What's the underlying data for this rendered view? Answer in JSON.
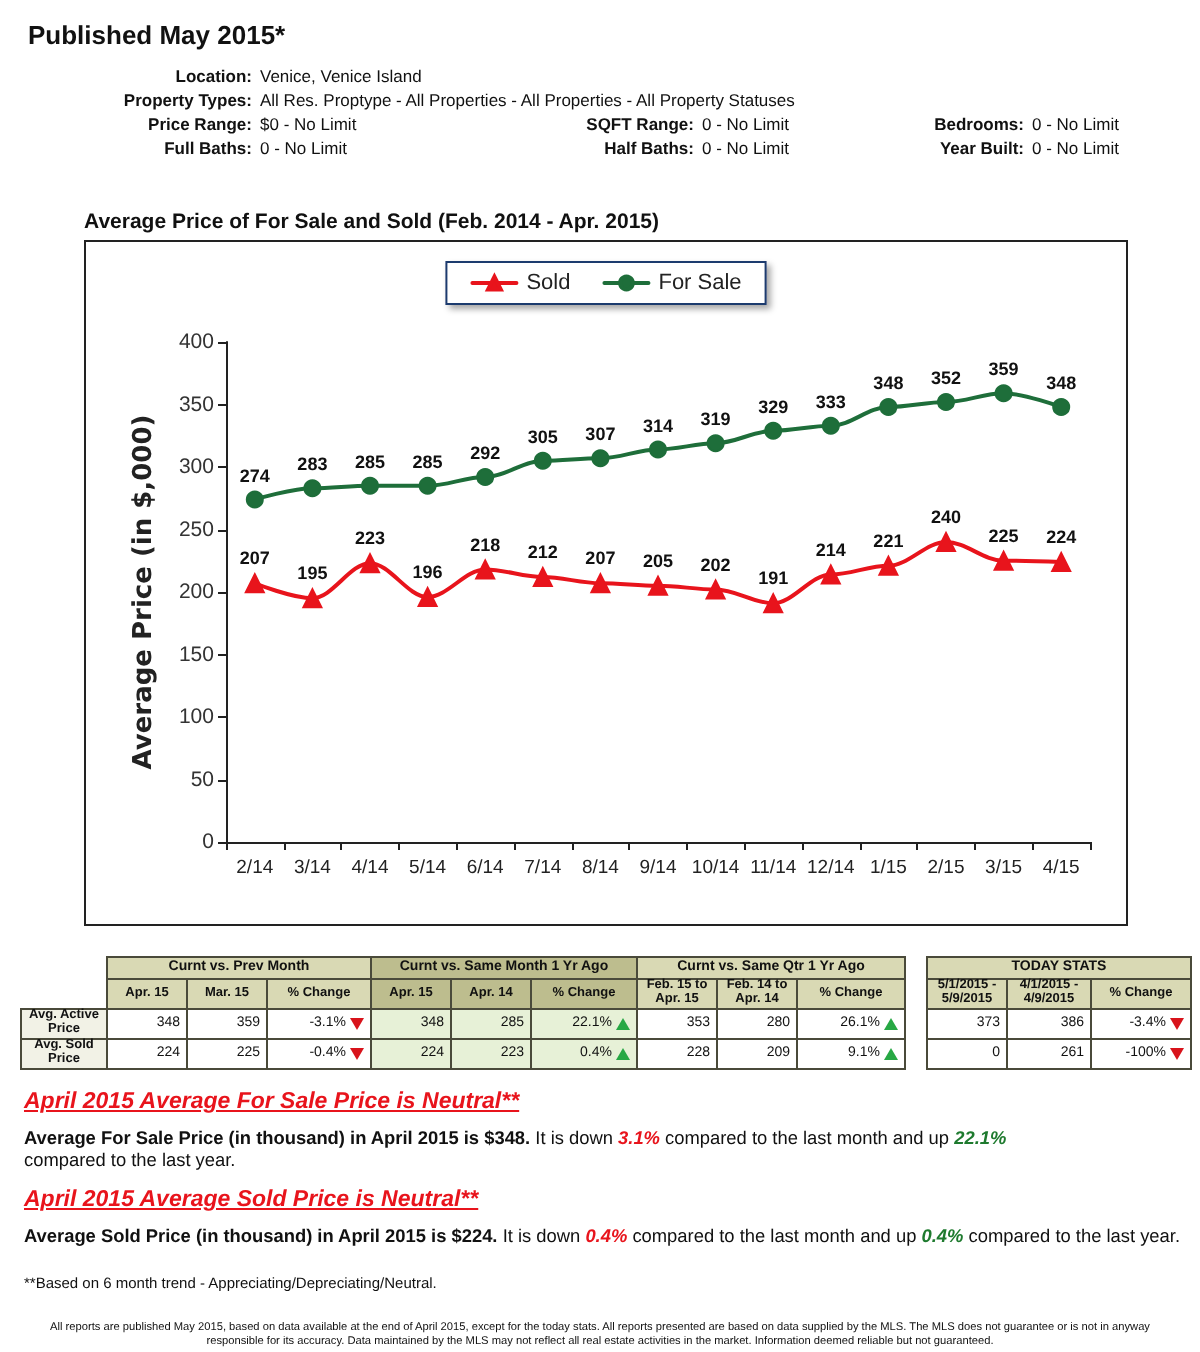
{
  "chart_data": [
    {
      "type": "other",
      "title": "Published May 2015*",
      "annotations": [
        "Location:",
        "Venice, Venice Island",
        "Property Types:",
        "All Res. Proptype - All Properties - All Properties - All Property Statuses",
        "Price Range:",
        "$0 - No Limit",
        "SQFT Range:",
        "0 - No Limit",
        "Bedrooms:",
        "0 - No Limit",
        "Full Baths:",
        "0 - No Limit",
        "Half Baths:",
        "0 - No Limit",
        "Year Built:",
        "0 - No Limit"
      ]
    },
    {
      "type": "line",
      "title": "Average Price of For Sale and Sold (Feb. 2014 - Apr. 2015)",
      "ylabel": "Average Price (in $,000)",
      "categories": [
        "2/14",
        "3/14",
        "4/14",
        "5/14",
        "6/14",
        "7/14",
        "8/14",
        "9/14",
        "10/14",
        "11/14",
        "12/14",
        "1/15",
        "2/15",
        "3/15",
        "4/15"
      ],
      "series": [
        {
          "name": "Sold",
          "color": "#e8141c",
          "marker": "triangle",
          "values": [
            207,
            195,
            223,
            196,
            218,
            212,
            207,
            205,
            202,
            191,
            214,
            221,
            240,
            225,
            224
          ]
        },
        {
          "name": "For Sale",
          "color": "#1e6e3a",
          "marker": "circle",
          "values": [
            274,
            283,
            285,
            285,
            292,
            305,
            307,
            314,
            319,
            329,
            333,
            348,
            352,
            359,
            348
          ]
        }
      ],
      "ylim": [
        0,
        400
      ],
      "yticks": [
        0,
        50,
        100,
        150,
        200,
        250,
        300,
        350,
        400
      ],
      "data_labels": true,
      "legend": "top",
      "grid": false
    },
    {
      "type": "other",
      "annotations": [
        "Curnt vs. Prev Month",
        "Curnt vs. Same Month 1 Yr Ago",
        "Curnt vs. Same Qtr 1 Yr Ago",
        "TODAY STATS",
        "Apr. 15",
        "Mar. 15",
        "% Change",
        "Apr. 15",
        "Apr. 14",
        "% Change",
        "Feb. 15 to Apr. 15",
        "Feb. 14 to Apr. 14",
        "% Change",
        "5/1/2015 - 5/9/2015",
        "4/1/2015 - 4/9/2015",
        "% Change",
        "Avg. Active Price",
        "Avg. Sold Price",
        "348",
        "359",
        "-3.1%",
        "348",
        "285",
        "22.1%",
        "353",
        "280",
        "26.1%",
        "373",
        "386",
        "-3.4%",
        "224",
        "225",
        "-0.4%",
        "224",
        "223",
        "0.4%",
        "228",
        "209",
        "9.1%",
        "0",
        "261",
        "-100%",
        "April 2015 Average For Sale Price is Neutral**",
        "Average For Sale Price (in thousand) in April 2015 is $348.",
        "It is down",
        "3.1%",
        "compared to the last month and up",
        "22.1%",
        "compared to the last year.",
        "April 2015 Average Sold Price is Neutral**",
        "Average Sold Price (in thousand) in April 2015 is $224.",
        "It is down",
        "0.4%",
        "compared to the last month and up",
        "0.4%",
        "compared to the last year.",
        "**Based on 6 month trend - Appreciating/Depreciating/Neutral.",
        "All reports are published May 2015, based on data available at the end of April 2015, except for the today stats. All reports presented are based on data supplied by the MLS. The MLS does not guarantee or is not in anyway responsible for its accuracy. Data maintained by the MLS may not reflect all real estate activities in the market. Information deemed reliable but not guaranteed."
      ]
    }
  ]
}
